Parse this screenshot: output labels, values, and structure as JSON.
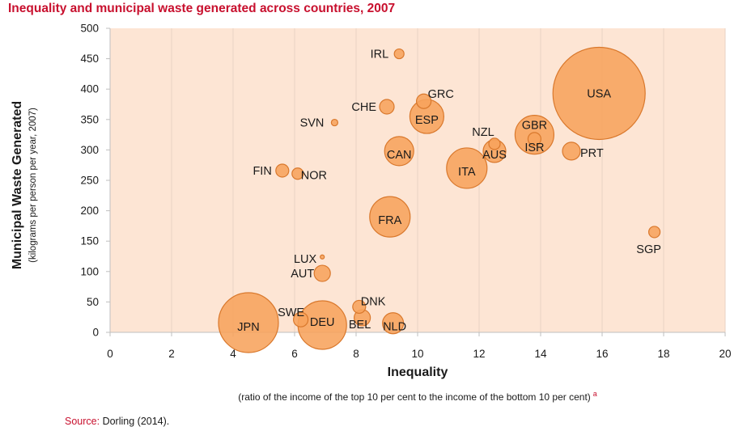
{
  "header": {
    "title": "Inequality and municipal waste generated across countries, 2007"
  },
  "axes": {
    "ylabel": "Municipal Waste Generated",
    "ylabel_sub": "(kilograms per person per year, 2007)",
    "xlabel": "Inequality",
    "xlabel_sub": "(ratio of the income of the top 10 per cent to the income of the bottom 10 per cent)",
    "xlabel_note": "a"
  },
  "footer": {
    "source_label": "Source:",
    "source_text": "Dorling (2014)."
  },
  "colors": {
    "plot_background": "#fde5d4",
    "bubble_fill": "#f7a35c",
    "bubble_stroke": "#d9782c",
    "grid": "#e9d3c4",
    "title": "#c8102e"
  },
  "chart_data": {
    "type": "scatter",
    "encoding": "bubble",
    "title": "Inequality and municipal waste generated across countries, 2007",
    "xlabel": "Inequality",
    "ylabel": "Municipal Waste Generated",
    "xlim": [
      0,
      20
    ],
    "ylim": [
      0,
      500
    ],
    "xticks": [
      0,
      2,
      4,
      6,
      8,
      10,
      12,
      14,
      16,
      18,
      20
    ],
    "yticks": [
      0,
      50,
      100,
      150,
      200,
      250,
      300,
      350,
      400,
      450,
      500
    ],
    "grid": "vertical",
    "points": [
      {
        "label": "IRL",
        "x": 9.4,
        "y": 458,
        "size": 6
      },
      {
        "label": "GRC",
        "x": 10.2,
        "y": 380,
        "size": 9
      },
      {
        "label": "CHE",
        "x": 9.0,
        "y": 371,
        "size": 9
      },
      {
        "label": "ESP",
        "x": 10.3,
        "y": 355,
        "size": 21
      },
      {
        "label": "SVN",
        "x": 7.3,
        "y": 345,
        "size": 4
      },
      {
        "label": "USA",
        "x": 15.9,
        "y": 393,
        "size": 57
      },
      {
        "label": "NZL",
        "x": 12.5,
        "y": 310,
        "size": 7
      },
      {
        "label": "GBR",
        "x": 13.8,
        "y": 325,
        "size": 24
      },
      {
        "label": "ISR",
        "x": 13.8,
        "y": 318,
        "size": 8
      },
      {
        "label": "AUS",
        "x": 12.5,
        "y": 298,
        "size": 14
      },
      {
        "label": "PRT",
        "x": 15.0,
        "y": 298,
        "size": 11
      },
      {
        "label": "CAN",
        "x": 9.4,
        "y": 298,
        "size": 18
      },
      {
        "label": "ITA",
        "x": 11.6,
        "y": 270,
        "size": 25
      },
      {
        "label": "FIN",
        "x": 5.6,
        "y": 266,
        "size": 8
      },
      {
        "label": "NOR",
        "x": 6.1,
        "y": 261,
        "size": 7
      },
      {
        "label": "FRA",
        "x": 9.1,
        "y": 190,
        "size": 25
      },
      {
        "label": "SGP",
        "x": 17.7,
        "y": 165,
        "size": 7
      },
      {
        "label": "LUX",
        "x": 6.9,
        "y": 124,
        "size": 2.5
      },
      {
        "label": "AUT",
        "x": 6.9,
        "y": 97,
        "size": 10
      },
      {
        "label": "DNK",
        "x": 8.1,
        "y": 42,
        "size": 8
      },
      {
        "label": "SWE",
        "x": 6.2,
        "y": 21,
        "size": 9
      },
      {
        "label": "BEL",
        "x": 8.2,
        "y": 24,
        "size": 10
      },
      {
        "label": "JPN",
        "x": 4.5,
        "y": 16,
        "size": 37
      },
      {
        "label": "DEU",
        "x": 6.9,
        "y": 12,
        "size": 30
      },
      {
        "label": "NLD",
        "x": 9.2,
        "y": 15,
        "size": 13
      }
    ]
  }
}
